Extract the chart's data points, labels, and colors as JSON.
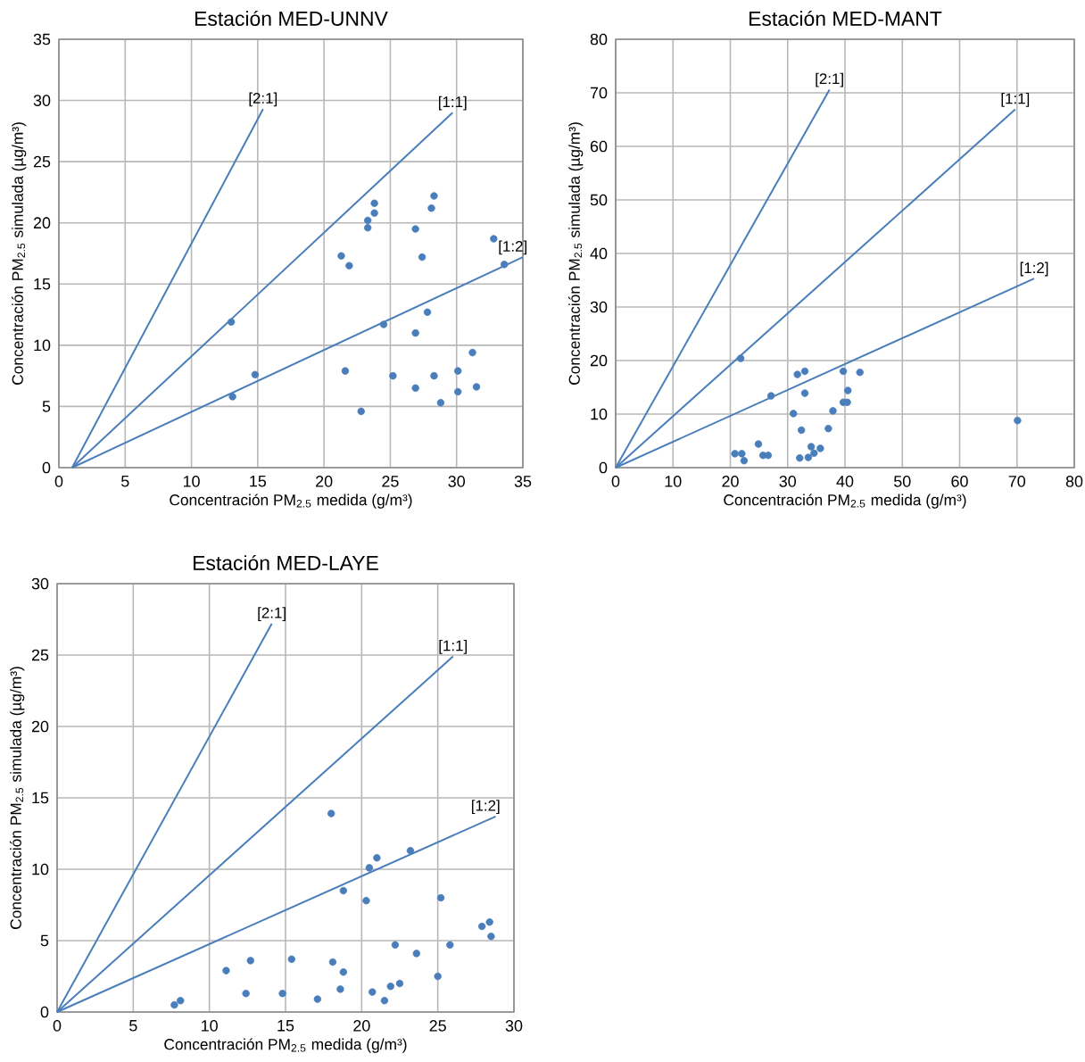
{
  "chart_data": [
    {
      "type": "scatter",
      "title": "Estación MED-UNNV",
      "xlabel": "Concentración PM$_{2.5}$ medida (g/m³)",
      "ylabel": "Concentración PM$_{2.5}$ simulada (µg/m³)",
      "xlim": [
        0,
        35
      ],
      "ylim": [
        0,
        35
      ],
      "xticks": [
        0,
        5,
        10,
        15,
        20,
        25,
        30,
        35
      ],
      "yticks": [
        0,
        5,
        10,
        15,
        20,
        25,
        30,
        35
      ],
      "grid": true,
      "series": [
        {
          "type": "scatter",
          "color": "#4a7ebb",
          "marker": "circle",
          "x": [
            13.0,
            13.1,
            14.8,
            21.3,
            21.9,
            21.6,
            22.8,
            23.3,
            23.3,
            23.8,
            23.8,
            24.5,
            25.2,
            26.9,
            26.9,
            26.9,
            27.4,
            27.8,
            28.3,
            28.1,
            28.3,
            28.8,
            30.1,
            30.1,
            31.2,
            31.5,
            32.8,
            33.6
          ],
          "values": [
            11.9,
            5.8,
            7.6,
            17.3,
            16.5,
            7.9,
            4.6,
            20.2,
            19.6,
            21.6,
            20.8,
            11.7,
            7.5,
            19.5,
            11.0,
            6.5,
            17.2,
            12.7,
            22.2,
            21.2,
            7.5,
            5.3,
            7.9,
            6.2,
            9.4,
            6.6,
            18.7,
            16.6
          ]
        },
        {
          "type": "line",
          "name": "[2:1]",
          "color": "#4a7ebb",
          "x": [
            1.0,
            15.4
          ],
          "values": [
            0,
            29.3
          ]
        },
        {
          "type": "line",
          "name": "[1:1]",
          "color": "#4a7ebb",
          "x": [
            1.0,
            29.7
          ],
          "values": [
            0,
            29.0
          ]
        },
        {
          "type": "line",
          "name": "[1:2]",
          "color": "#4a7ebb",
          "x": [
            1.0,
            35.0
          ],
          "values": [
            0,
            17.2
          ]
        }
      ]
    },
    {
      "type": "scatter",
      "title": "Estación MED-MANT",
      "xlabel": "Concentración PM$_{2.5}$ medida (g/m³)",
      "ylabel": "Concentración PM$_{2.5}$ simulada (µg/m³)",
      "xlim": [
        0,
        80
      ],
      "ylim": [
        0,
        80
      ],
      "xticks": [
        0,
        10,
        20,
        30,
        40,
        50,
        60,
        70,
        80
      ],
      "yticks": [
        0,
        10,
        20,
        30,
        40,
        50,
        60,
        70,
        80
      ],
      "grid": true,
      "series": [
        {
          "type": "scatter",
          "color": "#4a7ebb",
          "marker": "circle",
          "x": [
            20.8,
            22.0,
            22.4,
            21.8,
            24.9,
            25.7,
            26.6,
            27.1,
            31.0,
            31.7,
            33.0,
            33.0,
            32.4,
            32.1,
            33.6,
            34.1,
            34.6,
            35.7,
            37.1,
            37.9,
            39.7,
            39.7,
            40.4,
            40.5,
            42.6,
            70.1
          ],
          "values": [
            2.6,
            2.6,
            1.3,
            20.4,
            4.4,
            2.3,
            2.3,
            13.4,
            10.1,
            17.4,
            18.0,
            13.9,
            7.0,
            1.8,
            1.9,
            3.9,
            2.7,
            3.6,
            7.3,
            10.6,
            18.0,
            12.2,
            12.2,
            14.4,
            17.8,
            8.8
          ]
        },
        {
          "type": "line",
          "name": "[2:1]",
          "color": "#4a7ebb",
          "x": [
            0,
            37.3
          ],
          "values": [
            0,
            70.6
          ]
        },
        {
          "type": "line",
          "name": "[1:1]",
          "color": "#4a7ebb",
          "x": [
            0,
            69.7
          ],
          "values": [
            0,
            66.9
          ]
        },
        {
          "type": "line",
          "name": "[1:2]",
          "color": "#4a7ebb",
          "x": [
            0,
            73.0
          ],
          "values": [
            0,
            35.3
          ]
        }
      ]
    },
    {
      "type": "scatter",
      "title": "Estación MED-LAYE",
      "xlabel": "Concentración PM$_{2.5}$ medida (g/m³)",
      "ylabel": "Concentración PM$_{2.5}$ simulada (µg/m³)",
      "xlim": [
        0,
        30
      ],
      "ylim": [
        0,
        30
      ],
      "xticks": [
        0,
        5,
        10,
        15,
        20,
        25,
        30
      ],
      "yticks": [
        0,
        5,
        10,
        15,
        20,
        25,
        30
      ],
      "grid": true,
      "series": [
        {
          "type": "scatter",
          "color": "#4a7ebb",
          "marker": "circle",
          "x": [
            7.7,
            8.1,
            11.1,
            12.4,
            12.7,
            14.8,
            15.4,
            17.1,
            18.0,
            18.1,
            18.6,
            18.8,
            18.8,
            20.3,
            20.5,
            21.0,
            20.7,
            21.5,
            21.9,
            22.2,
            22.5,
            23.2,
            23.6,
            25.0,
            25.2,
            25.8,
            27.9,
            28.4,
            28.5
          ],
          "values": [
            0.5,
            0.8,
            2.9,
            1.3,
            3.6,
            1.3,
            3.7,
            0.9,
            13.9,
            3.5,
            1.6,
            2.8,
            8.5,
            7.8,
            10.1,
            10.8,
            1.4,
            0.8,
            1.8,
            4.7,
            2.0,
            11.3,
            4.1,
            2.5,
            8.0,
            4.7,
            6.0,
            6.3,
            5.3
          ]
        },
        {
          "type": "line",
          "name": "[2:1]",
          "color": "#4a7ebb",
          "x": [
            0,
            14.1
          ],
          "values": [
            0,
            27.2
          ]
        },
        {
          "type": "line",
          "name": "[1:1]",
          "color": "#4a7ebb",
          "x": [
            0,
            26.0
          ],
          "values": [
            0,
            24.9
          ]
        },
        {
          "type": "line",
          "name": "[1:2]",
          "color": "#4a7ebb",
          "x": [
            0,
            28.8
          ],
          "values": [
            0,
            13.7
          ]
        }
      ]
    }
  ]
}
